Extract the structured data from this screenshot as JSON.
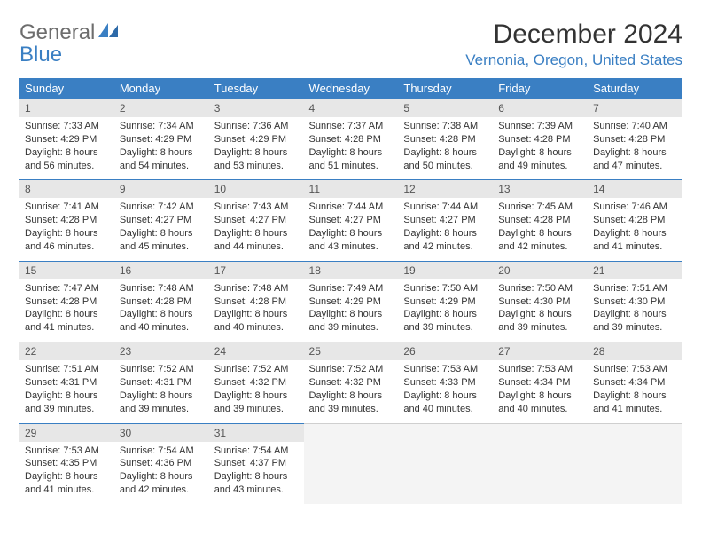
{
  "logo": {
    "word1": "General",
    "word2": "Blue"
  },
  "title": "December 2024",
  "location": "Vernonia, Oregon, United States",
  "colors": {
    "accent": "#3a7fc3",
    "header_text": "#ffffff",
    "daynum_bg": "#e7e7e7",
    "empty_bg": "#f4f4f4",
    "text": "#333333",
    "logo_gray": "#6d6d6d"
  },
  "day_headers": [
    "Sunday",
    "Monday",
    "Tuesday",
    "Wednesday",
    "Thursday",
    "Friday",
    "Saturday"
  ],
  "weeks": [
    [
      {
        "n": "1",
        "sr": "Sunrise: 7:33 AM",
        "ss": "Sunset: 4:29 PM",
        "d1": "Daylight: 8 hours",
        "d2": "and 56 minutes."
      },
      {
        "n": "2",
        "sr": "Sunrise: 7:34 AM",
        "ss": "Sunset: 4:29 PM",
        "d1": "Daylight: 8 hours",
        "d2": "and 54 minutes."
      },
      {
        "n": "3",
        "sr": "Sunrise: 7:36 AM",
        "ss": "Sunset: 4:29 PM",
        "d1": "Daylight: 8 hours",
        "d2": "and 53 minutes."
      },
      {
        "n": "4",
        "sr": "Sunrise: 7:37 AM",
        "ss": "Sunset: 4:28 PM",
        "d1": "Daylight: 8 hours",
        "d2": "and 51 minutes."
      },
      {
        "n": "5",
        "sr": "Sunrise: 7:38 AM",
        "ss": "Sunset: 4:28 PM",
        "d1": "Daylight: 8 hours",
        "d2": "and 50 minutes."
      },
      {
        "n": "6",
        "sr": "Sunrise: 7:39 AM",
        "ss": "Sunset: 4:28 PM",
        "d1": "Daylight: 8 hours",
        "d2": "and 49 minutes."
      },
      {
        "n": "7",
        "sr": "Sunrise: 7:40 AM",
        "ss": "Sunset: 4:28 PM",
        "d1": "Daylight: 8 hours",
        "d2": "and 47 minutes."
      }
    ],
    [
      {
        "n": "8",
        "sr": "Sunrise: 7:41 AM",
        "ss": "Sunset: 4:28 PM",
        "d1": "Daylight: 8 hours",
        "d2": "and 46 minutes."
      },
      {
        "n": "9",
        "sr": "Sunrise: 7:42 AM",
        "ss": "Sunset: 4:27 PM",
        "d1": "Daylight: 8 hours",
        "d2": "and 45 minutes."
      },
      {
        "n": "10",
        "sr": "Sunrise: 7:43 AM",
        "ss": "Sunset: 4:27 PM",
        "d1": "Daylight: 8 hours",
        "d2": "and 44 minutes."
      },
      {
        "n": "11",
        "sr": "Sunrise: 7:44 AM",
        "ss": "Sunset: 4:27 PM",
        "d1": "Daylight: 8 hours",
        "d2": "and 43 minutes."
      },
      {
        "n": "12",
        "sr": "Sunrise: 7:44 AM",
        "ss": "Sunset: 4:27 PM",
        "d1": "Daylight: 8 hours",
        "d2": "and 42 minutes."
      },
      {
        "n": "13",
        "sr": "Sunrise: 7:45 AM",
        "ss": "Sunset: 4:28 PM",
        "d1": "Daylight: 8 hours",
        "d2": "and 42 minutes."
      },
      {
        "n": "14",
        "sr": "Sunrise: 7:46 AM",
        "ss": "Sunset: 4:28 PM",
        "d1": "Daylight: 8 hours",
        "d2": "and 41 minutes."
      }
    ],
    [
      {
        "n": "15",
        "sr": "Sunrise: 7:47 AM",
        "ss": "Sunset: 4:28 PM",
        "d1": "Daylight: 8 hours",
        "d2": "and 41 minutes."
      },
      {
        "n": "16",
        "sr": "Sunrise: 7:48 AM",
        "ss": "Sunset: 4:28 PM",
        "d1": "Daylight: 8 hours",
        "d2": "and 40 minutes."
      },
      {
        "n": "17",
        "sr": "Sunrise: 7:48 AM",
        "ss": "Sunset: 4:28 PM",
        "d1": "Daylight: 8 hours",
        "d2": "and 40 minutes."
      },
      {
        "n": "18",
        "sr": "Sunrise: 7:49 AM",
        "ss": "Sunset: 4:29 PM",
        "d1": "Daylight: 8 hours",
        "d2": "and 39 minutes."
      },
      {
        "n": "19",
        "sr": "Sunrise: 7:50 AM",
        "ss": "Sunset: 4:29 PM",
        "d1": "Daylight: 8 hours",
        "d2": "and 39 minutes."
      },
      {
        "n": "20",
        "sr": "Sunrise: 7:50 AM",
        "ss": "Sunset: 4:30 PM",
        "d1": "Daylight: 8 hours",
        "d2": "and 39 minutes."
      },
      {
        "n": "21",
        "sr": "Sunrise: 7:51 AM",
        "ss": "Sunset: 4:30 PM",
        "d1": "Daylight: 8 hours",
        "d2": "and 39 minutes."
      }
    ],
    [
      {
        "n": "22",
        "sr": "Sunrise: 7:51 AM",
        "ss": "Sunset: 4:31 PM",
        "d1": "Daylight: 8 hours",
        "d2": "and 39 minutes."
      },
      {
        "n": "23",
        "sr": "Sunrise: 7:52 AM",
        "ss": "Sunset: 4:31 PM",
        "d1": "Daylight: 8 hours",
        "d2": "and 39 minutes."
      },
      {
        "n": "24",
        "sr": "Sunrise: 7:52 AM",
        "ss": "Sunset: 4:32 PM",
        "d1": "Daylight: 8 hours",
        "d2": "and 39 minutes."
      },
      {
        "n": "25",
        "sr": "Sunrise: 7:52 AM",
        "ss": "Sunset: 4:32 PM",
        "d1": "Daylight: 8 hours",
        "d2": "and 39 minutes."
      },
      {
        "n": "26",
        "sr": "Sunrise: 7:53 AM",
        "ss": "Sunset: 4:33 PM",
        "d1": "Daylight: 8 hours",
        "d2": "and 40 minutes."
      },
      {
        "n": "27",
        "sr": "Sunrise: 7:53 AM",
        "ss": "Sunset: 4:34 PM",
        "d1": "Daylight: 8 hours",
        "d2": "and 40 minutes."
      },
      {
        "n": "28",
        "sr": "Sunrise: 7:53 AM",
        "ss": "Sunset: 4:34 PM",
        "d1": "Daylight: 8 hours",
        "d2": "and 41 minutes."
      }
    ],
    [
      {
        "n": "29",
        "sr": "Sunrise: 7:53 AM",
        "ss": "Sunset: 4:35 PM",
        "d1": "Daylight: 8 hours",
        "d2": "and 41 minutes."
      },
      {
        "n": "30",
        "sr": "Sunrise: 7:54 AM",
        "ss": "Sunset: 4:36 PM",
        "d1": "Daylight: 8 hours",
        "d2": "and 42 minutes."
      },
      {
        "n": "31",
        "sr": "Sunrise: 7:54 AM",
        "ss": "Sunset: 4:37 PM",
        "d1": "Daylight: 8 hours",
        "d2": "and 43 minutes."
      },
      null,
      null,
      null,
      null
    ]
  ]
}
